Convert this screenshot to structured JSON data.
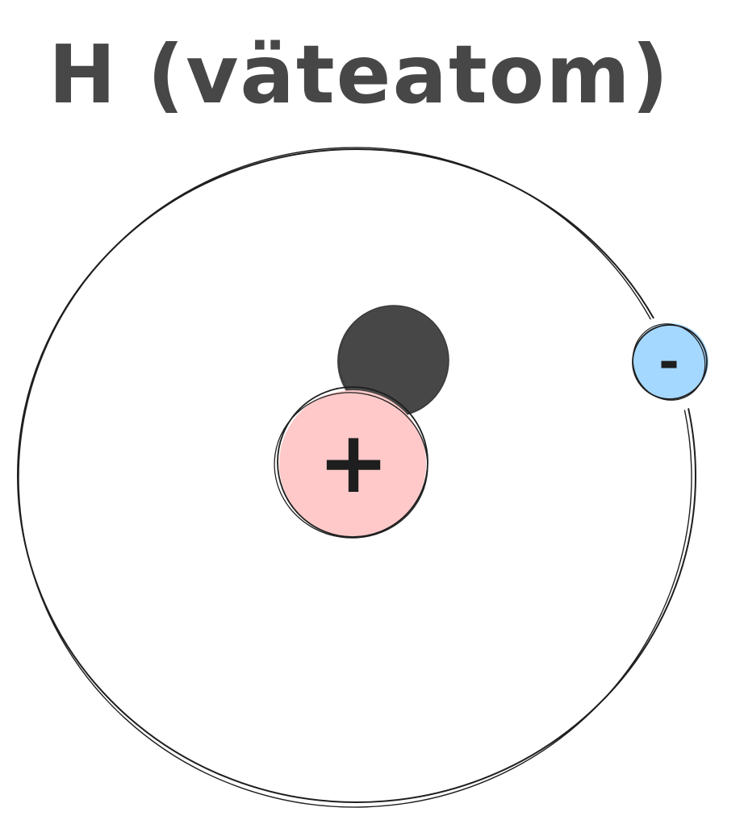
{
  "title": "H (väteatom)",
  "particles": {
    "proton": {
      "symbol": "+",
      "fill": "#ffc9c9"
    },
    "neutron": {
      "fill": "#474747"
    },
    "electron": {
      "symbol": "-",
      "fill": "#a5d8ff"
    }
  },
  "colors": {
    "stroke": "#1e1e1e",
    "text": "#474747",
    "background": "#ffffff"
  }
}
